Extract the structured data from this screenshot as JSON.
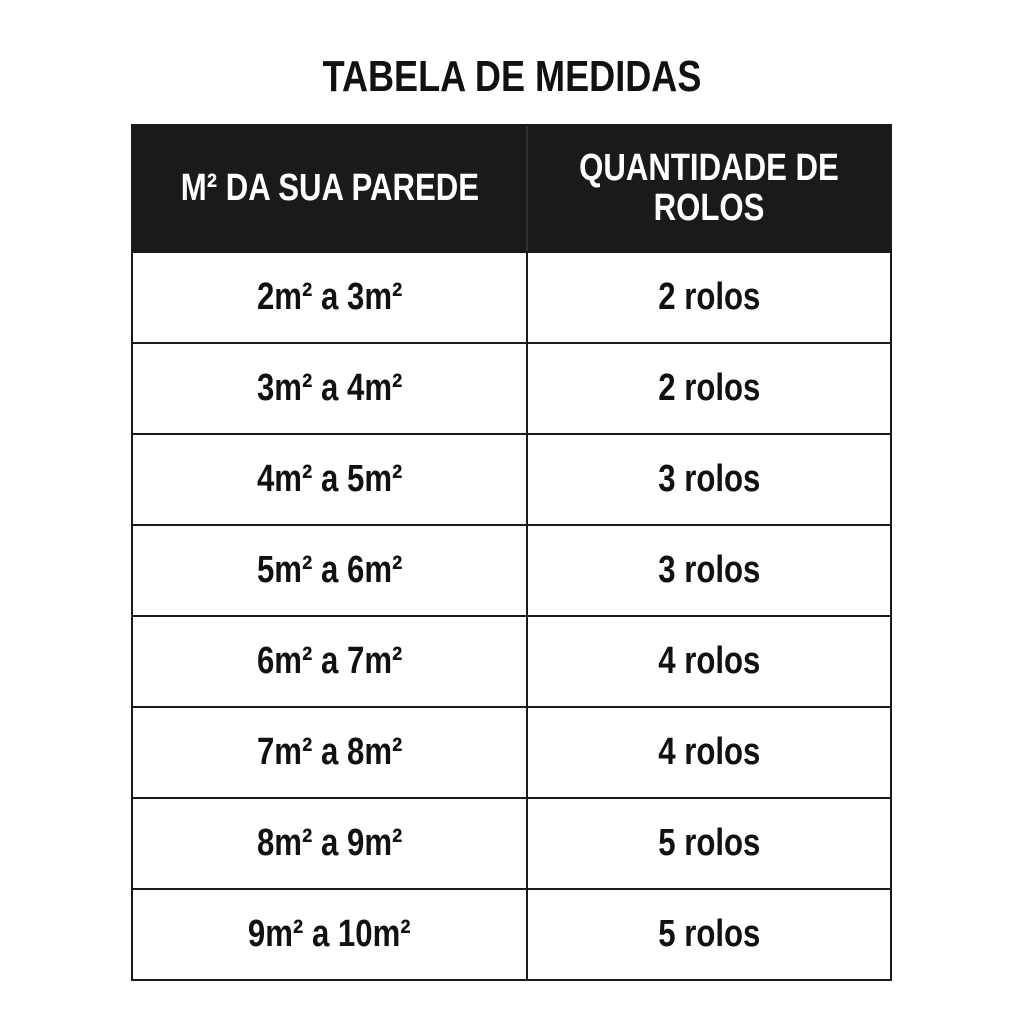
{
  "title": "TABELA DE MEDIDAS",
  "headers": [
    "M² DA SUA PAREDE",
    "QUANTIDADE DE ROLOS"
  ],
  "rows": [
    [
      "2m² a  3m²",
      "2 rolos"
    ],
    [
      "3m² a  4m²",
      "2 rolos"
    ],
    [
      "4m² a  5m²",
      "3 rolos"
    ],
    [
      "5m² a  6m²",
      "3 rolos"
    ],
    [
      "6m² a  7m²",
      "4 rolos"
    ],
    [
      "7m² a  8m²",
      "4 rolos"
    ],
    [
      "8m² a  9m²",
      "5 rolos"
    ],
    [
      "9m² a  10m²",
      "5 rolos"
    ]
  ],
  "colors": {
    "header_bg": "#1a1a1a",
    "header_text": "#ffffff",
    "text": "#111111"
  }
}
